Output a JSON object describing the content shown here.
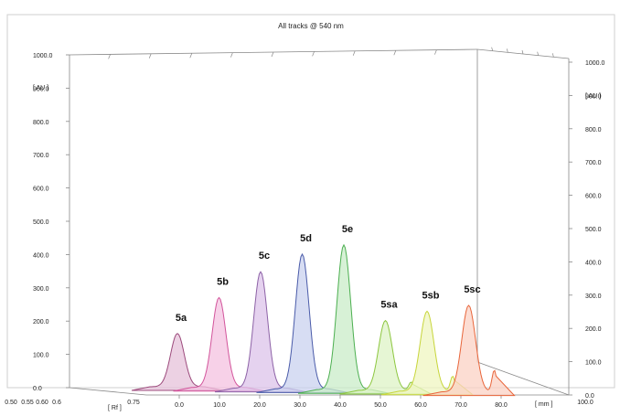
{
  "chart_data": {
    "type": "area",
    "title": "All tracks @ 540 nm",
    "y_unit": "[ AU ]",
    "x_unit": "[ mm ]",
    "rf_unit": "[ Rf ]",
    "ylim": [
      0,
      1000
    ],
    "y_ticks": [
      "0.0",
      "100.0",
      "200.0",
      "300.0",
      "400.0",
      "500.0",
      "600.0",
      "700.0",
      "800.0",
      "900.0",
      "1000.0"
    ],
    "x_ticks": [
      "0.0",
      "10.0",
      "20.0",
      "30.0",
      "40.0",
      "50.0",
      "60.0",
      "70.0",
      "80.0",
      "100.0"
    ],
    "rf_ticks": [
      "0.50",
      "0.55",
      "0.60",
      "0.6",
      "0.75"
    ],
    "grid": false,
    "series": [
      {
        "name": "5a",
        "color": "#9c4a7c",
        "fill": "#e6c1d9",
        "peak": 160
      },
      {
        "name": "5b",
        "color": "#d2549b",
        "fill": "#f4c1e0",
        "peak": 270
      },
      {
        "name": "5c",
        "color": "#8d62a6",
        "fill": "#dcc3e9",
        "peak": 350
      },
      {
        "name": "5d",
        "color": "#4a5ba9",
        "fill": "#c9d1ef",
        "peak": 405
      },
      {
        "name": "5e",
        "color": "#4caf50",
        "fill": "#c9ecc8",
        "peak": 435
      },
      {
        "name": "5sa",
        "color": "#8cc63e",
        "fill": "#def3c6",
        "peak": 210,
        "secondary": 25
      },
      {
        "name": "5sb",
        "color": "#c7d53a",
        "fill": "#eff5c0",
        "peak": 240,
        "secondary": 45
      },
      {
        "name": "5sc",
        "color": "#e8653a",
        "fill": "#fbd2c4",
        "peak": 260,
        "secondary": 65
      }
    ]
  }
}
